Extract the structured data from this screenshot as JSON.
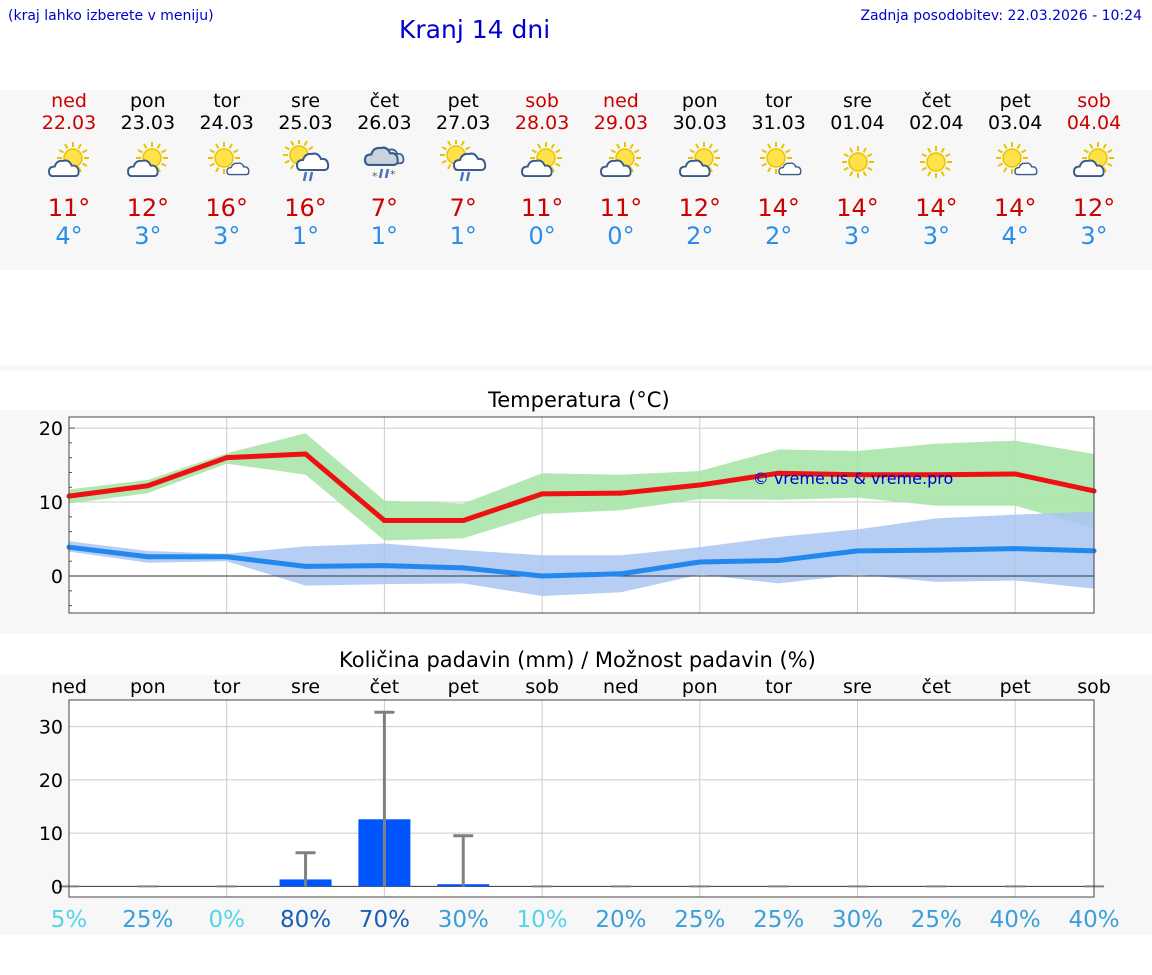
{
  "header": {
    "hint": "(kraj lahko izberete v meniju)",
    "title": "Kranj 14 dni",
    "updated": "Zadnja posodobitev: 22.03.2026 - 10:24"
  },
  "days": [
    {
      "name": "ned",
      "date": "22.03",
      "weekend": true,
      "icon": "sun-cloud-icon",
      "tmax": "11°",
      "tmin": "4°"
    },
    {
      "name": "pon",
      "date": "23.03",
      "weekend": false,
      "icon": "sun-cloud-icon",
      "tmax": "12°",
      "tmin": "3°"
    },
    {
      "name": "tor",
      "date": "24.03",
      "weekend": false,
      "icon": "sun-small-cloud-icon",
      "tmax": "16°",
      "tmin": "3°"
    },
    {
      "name": "sre",
      "date": "25.03",
      "weekend": false,
      "icon": "sun-cloud-rain-icon",
      "tmax": "16°",
      "tmin": "1°"
    },
    {
      "name": "čet",
      "date": "26.03",
      "weekend": false,
      "icon": "cloud-rain-snow-icon",
      "tmax": "7°",
      "tmin": "1°"
    },
    {
      "name": "pet",
      "date": "27.03",
      "weekend": false,
      "icon": "sun-cloud-rain-icon",
      "tmax": "7°",
      "tmin": "1°"
    },
    {
      "name": "sob",
      "date": "28.03",
      "weekend": true,
      "icon": "sun-cloud-icon",
      "tmax": "11°",
      "tmin": "0°"
    },
    {
      "name": "ned",
      "date": "29.03",
      "weekend": true,
      "icon": "sun-cloud-icon",
      "tmax": "11°",
      "tmin": "0°"
    },
    {
      "name": "pon",
      "date": "30.03",
      "weekend": false,
      "icon": "sun-cloud-icon",
      "tmax": "12°",
      "tmin": "2°"
    },
    {
      "name": "tor",
      "date": "31.03",
      "weekend": false,
      "icon": "sun-small-cloud-icon",
      "tmax": "14°",
      "tmin": "2°"
    },
    {
      "name": "sre",
      "date": "01.04",
      "weekend": false,
      "icon": "sun-icon",
      "tmax": "14°",
      "tmin": "3°"
    },
    {
      "name": "čet",
      "date": "02.04",
      "weekend": false,
      "icon": "sun-icon",
      "tmax": "14°",
      "tmin": "3°"
    },
    {
      "name": "pet",
      "date": "03.04",
      "weekend": false,
      "icon": "sun-small-cloud-icon",
      "tmax": "14°",
      "tmin": "4°"
    },
    {
      "name": "sob",
      "date": "04.04",
      "weekend": true,
      "icon": "sun-cloud-icon",
      "tmax": "12°",
      "tmin": "3°"
    }
  ],
  "colors": {
    "max_line": "#ee1111",
    "min_line": "#2288ee",
    "max_band": "#a8e6a8",
    "min_band": "#a9c4f2",
    "precip_bar": "#0055ff",
    "whisker": "#808080",
    "weekend": "#cc0000",
    "link": "#0000cc"
  },
  "chart_data": [
    {
      "type": "line",
      "title": "Temperatura (°C)",
      "watermark": "© vreme.us & vreme.pro",
      "yticks": [
        0,
        10,
        20
      ],
      "ylim": [
        -5,
        21.5
      ],
      "x": [
        0,
        1,
        2,
        3,
        4,
        5,
        6,
        7,
        8,
        9,
        10,
        11,
        12,
        13
      ],
      "series": [
        {
          "name": "max",
          "values": [
            10.8,
            12.2,
            16.0,
            16.5,
            7.5,
            7.5,
            11.1,
            11.2,
            12.3,
            13.9,
            13.7,
            13.7,
            13.8,
            11.5
          ]
        },
        {
          "name": "min",
          "values": [
            3.9,
            2.6,
            2.6,
            1.3,
            1.4,
            1.1,
            0.0,
            0.3,
            1.9,
            2.1,
            3.4,
            3.5,
            3.7,
            3.4
          ]
        }
      ],
      "bands": [
        {
          "name": "max-range",
          "lower": [
            9.8,
            11.2,
            15.2,
            13.7,
            4.8,
            5.1,
            8.4,
            8.9,
            10.4,
            10.3,
            10.6,
            9.5,
            9.5,
            6.5
          ],
          "upper": [
            11.7,
            13.0,
            16.6,
            19.3,
            10.2,
            9.8,
            13.9,
            13.7,
            14.2,
            17.1,
            16.9,
            17.9,
            18.3,
            16.5
          ]
        },
        {
          "name": "min-range",
          "lower": [
            3.3,
            1.8,
            2.0,
            -1.3,
            -1.1,
            -1.0,
            -2.7,
            -2.2,
            0.2,
            -1.0,
            0.2,
            -0.8,
            -0.6,
            -1.7
          ],
          "upper": [
            4.7,
            3.4,
            3.0,
            4.0,
            4.4,
            3.5,
            2.8,
            2.8,
            3.9,
            5.3,
            6.3,
            7.8,
            8.3,
            8.7
          ]
        }
      ]
    },
    {
      "type": "bar",
      "title": "Količina padavin (mm) / Možnost padavin (%)",
      "yticks": [
        0,
        10,
        20,
        30
      ],
      "ylim": [
        -2,
        35
      ],
      "categories": [
        "ned",
        "pon",
        "tor",
        "sre",
        "čet",
        "pet",
        "sob",
        "ned",
        "pon",
        "tor",
        "sre",
        "čet",
        "pet",
        "sob"
      ],
      "values": [
        0,
        0,
        0,
        1.3,
        12.6,
        0.4,
        0,
        0,
        0,
        0,
        0,
        0,
        0,
        0
      ],
      "error_high": [
        0,
        0,
        0,
        6.3,
        32.7,
        9.5,
        0,
        0,
        0,
        0,
        0,
        0,
        0,
        0
      ],
      "probabilities": [
        "5%",
        "25%",
        "0%",
        "80%",
        "70%",
        "30%",
        "10%",
        "20%",
        "25%",
        "25%",
        "30%",
        "25%",
        "40%",
        "40%"
      ],
      "probability_colors": [
        "#55d4e8",
        "#3a9fd8",
        "#55d4e8",
        "#1a5fb4",
        "#1a5fb4",
        "#3a9fd8",
        "#55d4e8",
        "#3a9fd8",
        "#3a9fd8",
        "#3a9fd8",
        "#3a9fd8",
        "#3a9fd8",
        "#3a9fd8",
        "#3a9fd8"
      ]
    }
  ]
}
